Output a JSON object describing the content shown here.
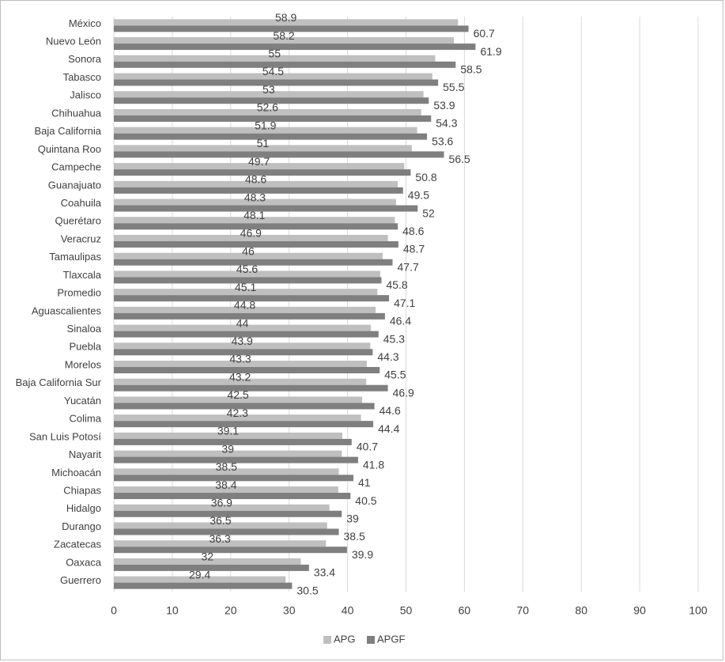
{
  "chart_data": {
    "type": "bar",
    "orientation": "horizontal",
    "categories": [
      "México",
      "Nuevo León",
      "Sonora",
      "Tabasco",
      "Jalisco",
      "Chihuahua",
      "Baja California",
      "Quintana Roo",
      "Campeche",
      "Guanajuato",
      "Coahuila",
      "Querétaro",
      "Veracruz",
      "Tamaulipas",
      "Tlaxcala",
      "Promedio",
      "Aguascalientes",
      "Sinaloa",
      "Puebla",
      "Morelos",
      "Baja California Sur",
      "Yucatán",
      "Colima",
      "San Luis Potosí",
      "Nayarit",
      "Michoacán",
      "Chiapas",
      "Hidalgo",
      "Durango",
      "Zacatecas",
      "Oaxaca",
      "Guerrero"
    ],
    "series": [
      {
        "name": "APG",
        "color": "#bfbfbf",
        "values": [
          58.9,
          58.2,
          55,
          54.5,
          53,
          52.6,
          51.9,
          51,
          49.7,
          48.6,
          48.3,
          48.1,
          46.9,
          46,
          45.6,
          45.1,
          44.8,
          44,
          43.9,
          43.3,
          43.2,
          42.5,
          42.3,
          39.1,
          39,
          38.5,
          38.4,
          36.9,
          36.5,
          36.3,
          32,
          29.4
        ],
        "labels": [
          "58.9",
          "58.2",
          "55",
          "54.5",
          "53",
          "52.6",
          "51.9",
          "51",
          "49.7",
          "48.6",
          "48.3",
          "48.1",
          "46.9",
          "46",
          "45.6",
          "45.1",
          "44.8",
          "44",
          "43.9",
          "43.3",
          "43.2",
          "42.5",
          "42.3",
          "39.1",
          "39",
          "38.5",
          "38.4",
          "36.9",
          "36.5",
          "36.3",
          "32",
          "29.4"
        ]
      },
      {
        "name": "APGF",
        "color": "#7f7f7f",
        "values": [
          60.7,
          61.9,
          58.5,
          55.5,
          53.9,
          54.3,
          53.6,
          56.5,
          50.8,
          49.5,
          52,
          48.6,
          48.7,
          47.7,
          45.8,
          47.1,
          46.4,
          45.3,
          44.3,
          45.5,
          46.9,
          44.6,
          44.4,
          40.7,
          41.8,
          41,
          40.5,
          39,
          38.5,
          39.9,
          33.4,
          30.5
        ],
        "labels": [
          "60.7",
          "61.9",
          "58.5",
          "55.5",
          "53.9",
          "54.3",
          "53.6",
          "56.5",
          "50.8",
          "49.5",
          "52",
          "48.6",
          "48.7",
          "47.7",
          "45.8",
          "47.1",
          "46.4",
          "45.3",
          "44.3",
          "45.5",
          "46.9",
          "44.6",
          "44.4",
          "40.7",
          "41.8",
          "41",
          "40.5",
          "39",
          "38.5",
          "39.9",
          "33.4",
          "30.5"
        ]
      }
    ],
    "xlim": [
      0,
      100
    ],
    "xticks": [
      "0",
      "10",
      "20",
      "30",
      "40",
      "50",
      "60",
      "70",
      "80",
      "90",
      "100"
    ],
    "grid": true,
    "legend_position": "bottom",
    "gridline_color": "#d9d9d9",
    "text_color": "#404040"
  }
}
